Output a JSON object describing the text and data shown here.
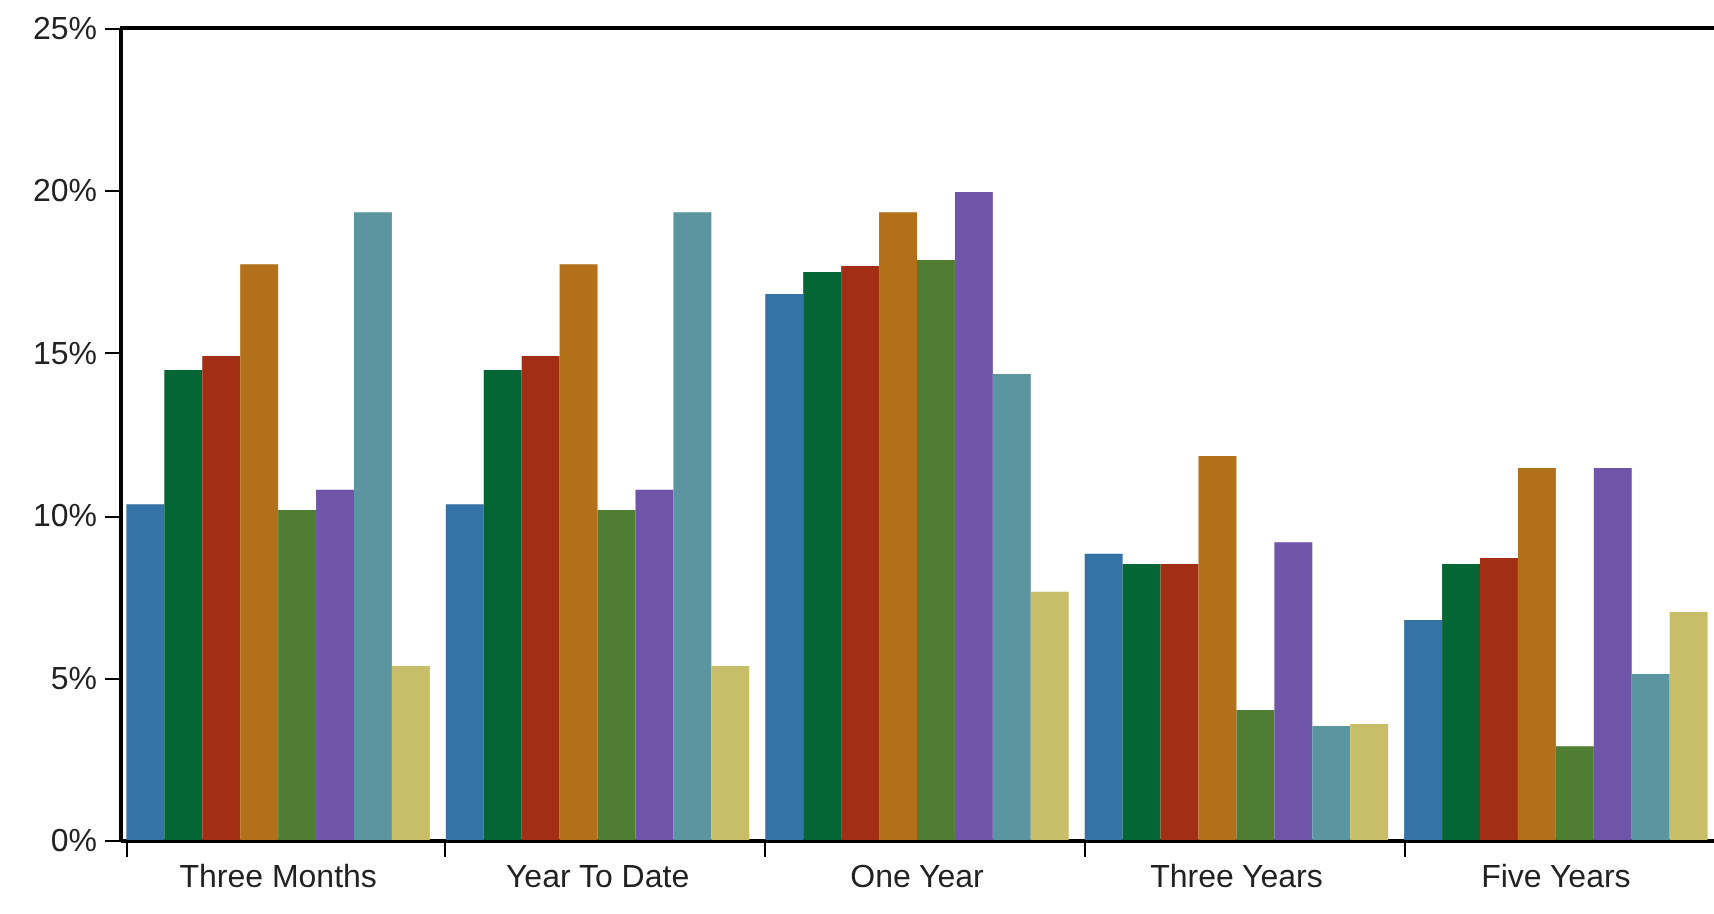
{
  "chart_data": {
    "type": "bar",
    "categories": [
      "Three Months",
      "Year To Date",
      "One Year",
      "Three Years",
      "Five Years"
    ],
    "series": [
      {
        "color": "#3572a5",
        "values": [
          10.34,
          10.34,
          16.81,
          8.81,
          6.77
        ]
      },
      {
        "color": "#046535",
        "values": [
          14.47,
          14.47,
          17.49,
          8.5,
          8.5
        ]
      },
      {
        "color": "#a22f13",
        "values": [
          14.9,
          14.9,
          17.67,
          8.5,
          8.68
        ]
      },
      {
        "color": "#b2701a",
        "values": [
          17.73,
          17.73,
          19.33,
          11.82,
          11.45
        ]
      },
      {
        "color": "#4f7e32",
        "values": [
          10.16,
          10.16,
          17.86,
          4.0,
          2.89
        ]
      },
      {
        "color": "#6e55aa",
        "values": [
          10.78,
          10.78,
          19.95,
          9.17,
          11.45
        ]
      },
      {
        "color": "#5b96a0",
        "values": [
          19.33,
          19.33,
          14.35,
          3.51,
          5.11
        ]
      },
      {
        "color": "#c8bd68",
        "values": [
          5.36,
          5.36,
          7.64,
          3.57,
          7.02
        ]
      }
    ],
    "ylim": [
      0,
      25
    ],
    "yticks": [
      {
        "value": 0,
        "label": "0%"
      },
      {
        "value": 5,
        "label": "5%"
      },
      {
        "value": 10,
        "label": "10%"
      },
      {
        "value": 15,
        "label": "15%"
      },
      {
        "value": 20,
        "label": "20%"
      },
      {
        "value": 25,
        "label": "25%"
      }
    ],
    "grid": false
  }
}
